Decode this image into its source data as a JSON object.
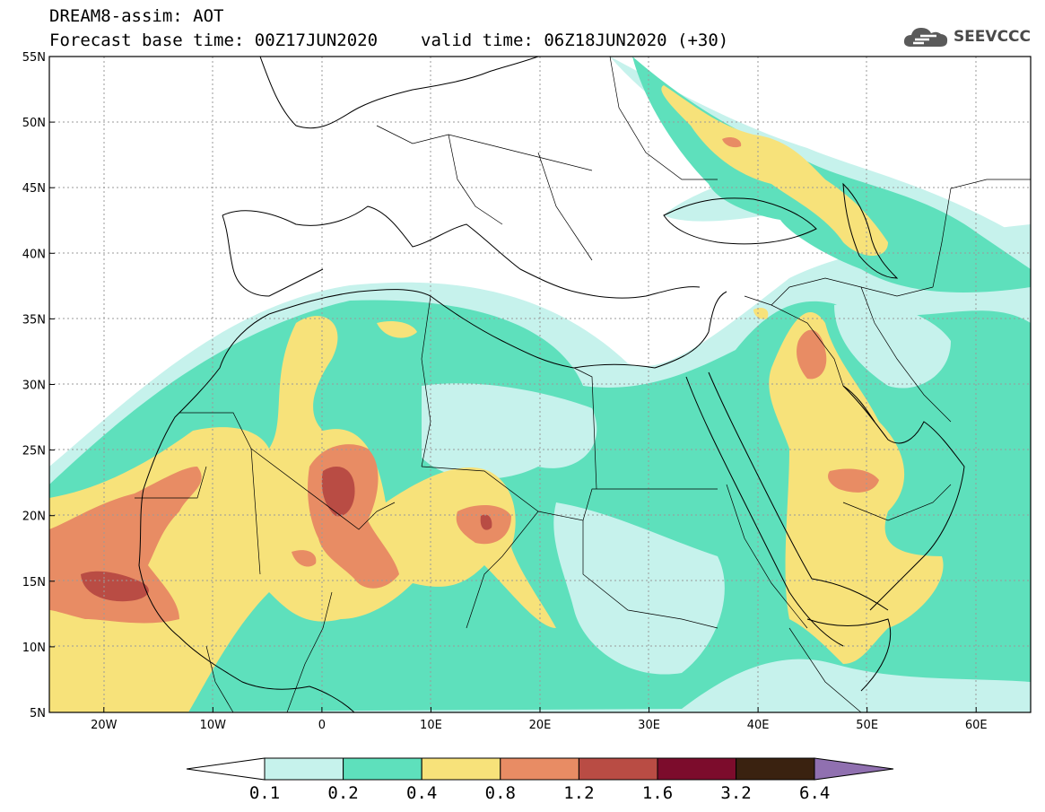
{
  "header": {
    "model": "DREAM8-assim: AOT",
    "base_time": "Forecast base time: 00Z17JUN2020",
    "valid_time": "valid time: 06Z18JUN2020 (+30)",
    "brand": "SEEVCCC"
  },
  "axes": {
    "lat_labels": [
      "55N",
      "50N",
      "45N",
      "40N",
      "35N",
      "30N",
      "25N",
      "20N",
      "15N",
      "10N",
      "5N"
    ],
    "lat_values": [
      55,
      50,
      45,
      40,
      35,
      30,
      25,
      20,
      15,
      10,
      5
    ],
    "lon_labels": [
      "20W",
      "10W",
      "0",
      "10E",
      "20E",
      "30E",
      "40E",
      "50E",
      "60E"
    ],
    "lon_values": [
      -20,
      -10,
      0,
      10,
      20,
      30,
      40,
      50,
      60
    ],
    "lon_range": [
      -25,
      65
    ],
    "lat_range": [
      5,
      55
    ]
  },
  "colorbar": {
    "labels": [
      "0.1",
      "0.2",
      "0.4",
      "0.8",
      "1.2",
      "1.6",
      "3.2",
      "6.4"
    ],
    "colors": [
      "#c6f2ec",
      "#5ee0bc",
      "#f7e27a",
      "#e88c64",
      "#b94c44",
      "#7c0c2c",
      "#3a2210",
      "#9070b0"
    ]
  },
  "colors": {
    "aot_01": "#c6f2ec",
    "aot_02": "#5ee0bc",
    "aot_04": "#f7e27a",
    "aot_08": "#e88c64",
    "aot_12": "#b94c44",
    "grid": "#9a9a9a"
  }
}
